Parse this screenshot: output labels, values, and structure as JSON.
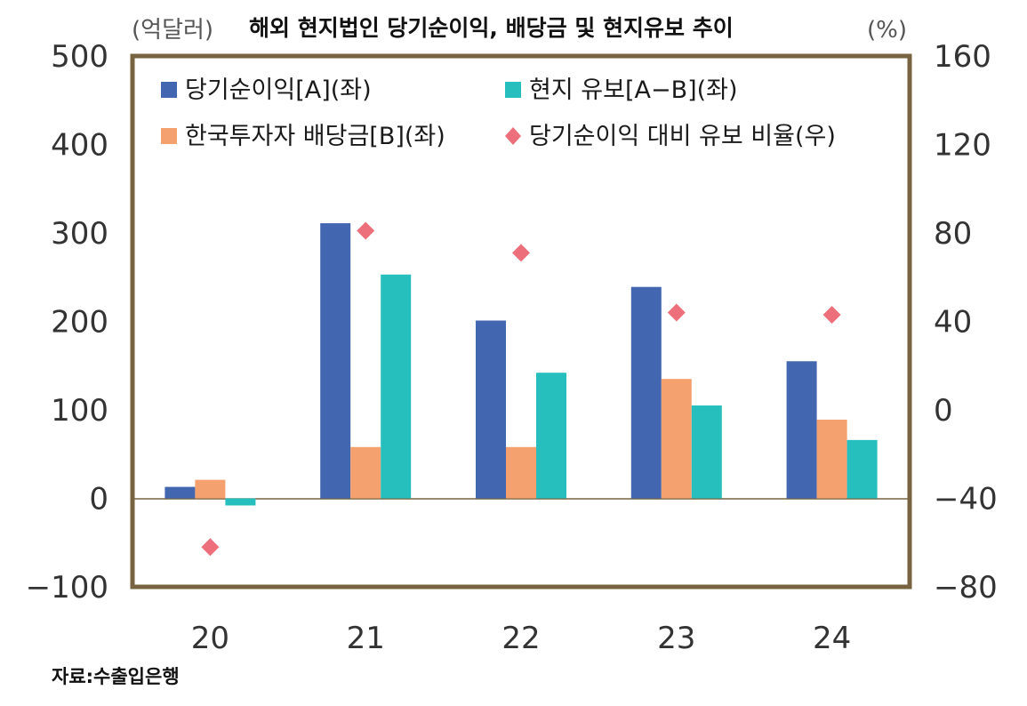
{
  "chart_data": {
    "type": "bar",
    "title": "해외 현지법인 당기순이익, 배당금 및 현지유보 추이",
    "left_unit": "(억달러)",
    "right_unit": "(%)",
    "source": "자료:수출입은행",
    "categories": [
      "20",
      "21",
      "22",
      "23",
      "24"
    ],
    "left_axis": {
      "ylim": [
        -100,
        500
      ],
      "ticks": [
        "500",
        "400",
        "300",
        "200",
        "100",
        "0",
        "−100"
      ]
    },
    "right_axis": {
      "ylim": [
        -80,
        160
      ],
      "ticks": [
        "160",
        "120",
        "80",
        "40",
        "0",
        "−40",
        "−80"
      ]
    },
    "series": [
      {
        "name": "당기순이익[A](좌)",
        "axis": "left",
        "kind": "bar",
        "color": "#4266b0",
        "values": [
          13,
          311,
          201,
          239,
          155
        ]
      },
      {
        "name": "한국투자자 배당금[B](좌)",
        "axis": "left",
        "kind": "bar",
        "color": "#f5a16f",
        "values": [
          21,
          58,
          58,
          135,
          89
        ]
      },
      {
        "name": "현지 유보[A−B](좌)",
        "axis": "left",
        "kind": "bar",
        "color": "#26bfbd",
        "values": [
          -8,
          253,
          142,
          105,
          66
        ]
      },
      {
        "name": "당기순이익 대비 유보 비율(우)",
        "axis": "right",
        "kind": "marker",
        "color": "#ec6f7b",
        "values": [
          -62,
          81,
          71,
          44,
          43
        ]
      }
    ],
    "legend_position": "top-left",
    "grid": false
  }
}
